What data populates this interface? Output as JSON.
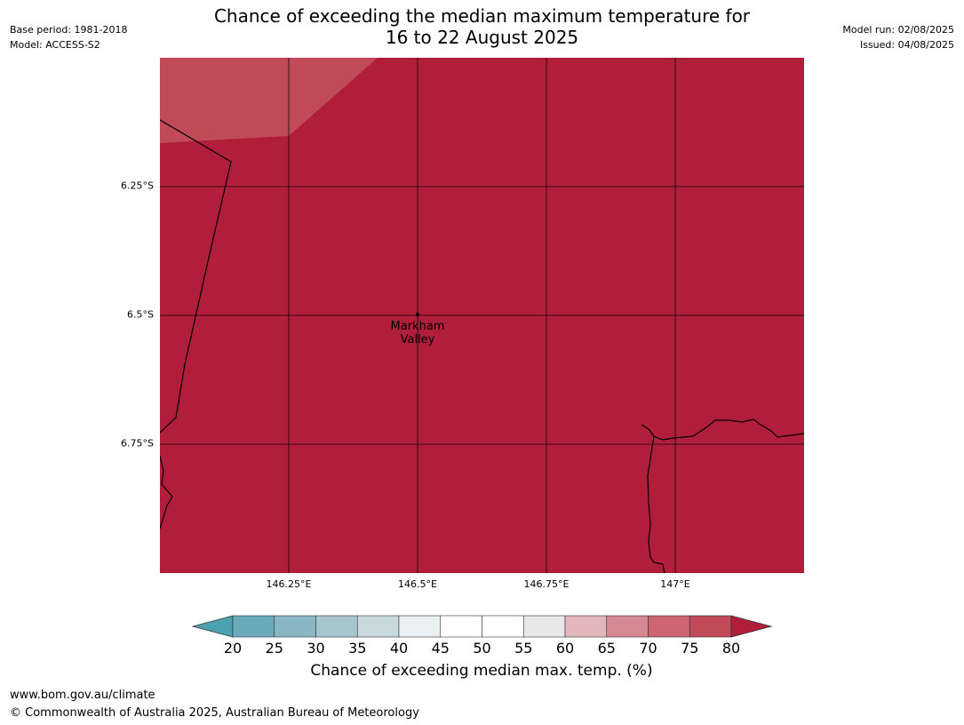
{
  "header": {
    "base_period": "Base period: 1981-2018",
    "model": "Model: ACCESS-S2",
    "model_run": "Model run: 02/08/2025",
    "issued": "Issued: 04/08/2025",
    "title_line1": "Chance of exceeding the median maximum temperature for",
    "title_line2": "16 to 22 August 2025"
  },
  "map": {
    "fill_color": "#b11e3a",
    "upper_left_color": "#c04a57",
    "lat_labels": [
      "6.25°S",
      "6.5°S",
      "6.75°S"
    ],
    "lon_labels": [
      "146.25°E",
      "146.5°E",
      "146.75°E",
      "147°E"
    ],
    "place": {
      "name": "Markham Valley",
      "line1": "Markham",
      "line2": "Valley"
    }
  },
  "legend": {
    "title": "Chance of exceeding median max. temp. (%)",
    "ticks": [
      "20",
      "25",
      "30",
      "35",
      "40",
      "45",
      "50",
      "55",
      "60",
      "65",
      "70",
      "75",
      "80"
    ],
    "under_color": "#4ba0b1",
    "over_color": "#b11e3a",
    "colors": [
      "#6aaabb",
      "#8ab5c3",
      "#a7c5cd",
      "#c8d9dd",
      "#e9f0f2",
      "#ffffff",
      "#ffffff",
      "#e8e8e8",
      "#e3b6bc",
      "#d68892",
      "#cc6471",
      "#c04a57"
    ]
  },
  "footer": {
    "url": "www.bom.gov.au/climate",
    "copyright": "© Commonwealth of Australia 2025, Australian Bureau of Meteorology"
  }
}
